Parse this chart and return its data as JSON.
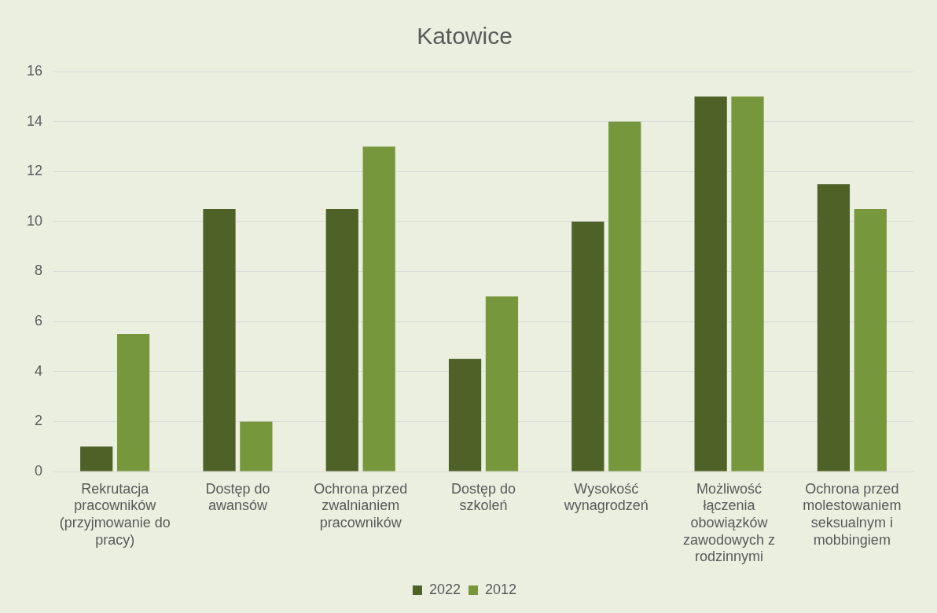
{
  "chart_data": {
    "type": "bar",
    "title": "Katowice",
    "categories": [
      "Rekrutacja pracowników (przyjmowanie do pracy)",
      "Dostęp do awansów",
      "Ochrona przed zwalnianiem pracowników",
      "Dostęp do szkoleń",
      "Wysokość wynagrodzeń",
      "Możliwość łączenia obowiązków zawodowych z rodzinnymi",
      "Ochrona przed molestowaniem seksualnym i mobbingiem"
    ],
    "series": [
      {
        "name": "2022",
        "color": "#4e6228",
        "values": [
          1,
          10.5,
          10.5,
          4.5,
          10,
          15,
          11.5
        ]
      },
      {
        "name": "2012",
        "color": "#77973c",
        "values": [
          5.5,
          2,
          13,
          7,
          14,
          15,
          10.5
        ]
      }
    ],
    "ylim": [
      0,
      16
    ],
    "yticks": [
      0,
      2,
      4,
      6,
      8,
      10,
      12,
      14,
      16
    ],
    "grid": "y",
    "legend": "bottom"
  }
}
